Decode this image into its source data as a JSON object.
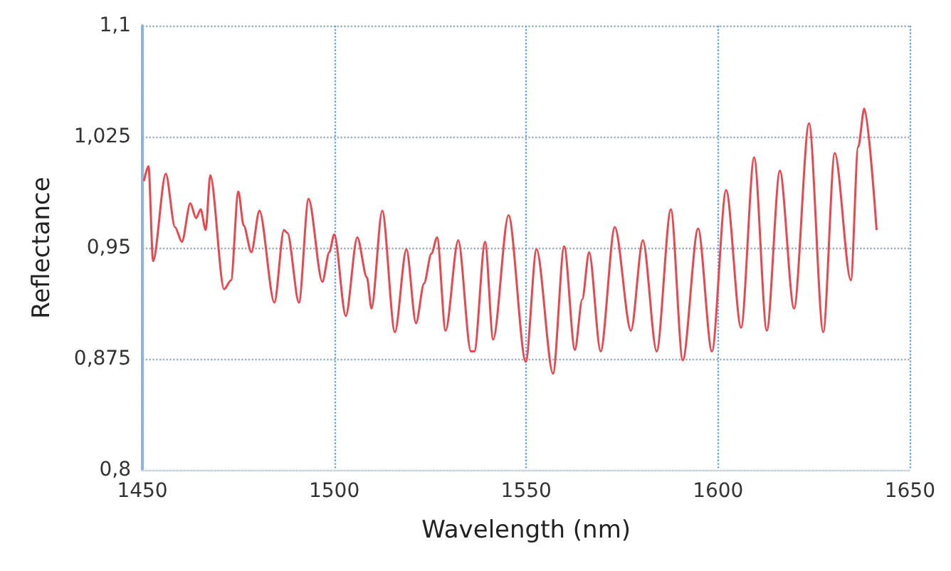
{
  "chart_data": {
    "type": "line",
    "xlabel": "Wavelength (nm)",
    "ylabel": "Reflectance",
    "xlim": [
      1450,
      1650
    ],
    "xticks": [
      1450,
      1500,
      1550,
      1600,
      1650
    ],
    "ylim": [
      0.8,
      1.1
    ],
    "yticks": [
      {
        "value": 0.8,
        "label": "0,8"
      },
      {
        "value": 0.875,
        "label": "0,875"
      },
      {
        "value": 0.95,
        "label": "0,95"
      },
      {
        "value": 1.025,
        "label": "1,025"
      },
      {
        "value": 1.1,
        "label": "1,1"
      }
    ],
    "grid": true,
    "marker": "none",
    "line_style": "solid",
    "series": [
      {
        "color": "#e8474f",
        "x": [
          1450.4,
          1451.6,
          1452.8,
          1456.1,
          1458.5,
          1460.3,
          1462.5,
          1464,
          1465.2,
          1466.5,
          1467.7,
          1471.3,
          1473.1,
          1475,
          1476.4,
          1478.4,
          1480.5,
          1484.4,
          1486.9,
          1487.8,
          1490.8,
          1493.3,
          1496.9,
          1498.7,
          1500,
          1503,
          1506,
          1508.5,
          1509.7,
          1512.5,
          1515.8,
          1518.8,
          1521.3,
          1523.4,
          1525.3,
          1526.8,
          1529,
          1532.3,
          1535.6,
          1536.5,
          1539.3,
          1541.4,
          1545.4,
          1549.9,
          1552.7,
          1557,
          1559.9,
          1562.7,
          1564.6,
          1566.4,
          1569.4,
          1573.1,
          1577.3,
          1580.4,
          1584,
          1587.7,
          1590.8,
          1594.8,
          1598.4,
          1602.1,
          1606,
          1609.4,
          1612.7,
          1616.1,
          1619.8,
          1623.7,
          1627.4,
          1630.4,
          1634.6,
          1636.5,
          1638.1,
          1641.3
        ],
        "values": [
          0.995,
          1.005,
          0.941,
          1.0,
          0.964,
          0.954,
          0.98,
          0.97,
          0.976,
          0.962,
          0.999,
          0.922,
          0.928,
          0.988,
          0.965,
          0.947,
          0.975,
          0.913,
          0.962,
          0.96,
          0.913,
          0.983,
          0.927,
          0.947,
          0.959,
          0.904,
          0.957,
          0.93,
          0.909,
          0.975,
          0.893,
          0.949,
          0.899,
          0.926,
          0.946,
          0.957,
          0.894,
          0.955,
          0.88,
          0.88,
          0.954,
          0.888,
          0.972,
          0.873,
          0.949,
          0.865,
          0.951,
          0.881,
          0.915,
          0.947,
          0.88,
          0.964,
          0.894,
          0.955,
          0.88,
          0.976,
          0.874,
          0.963,
          0.88,
          0.989,
          0.896,
          1.011,
          0.894,
          1.002,
          0.909,
          1.034,
          0.893,
          1.014,
          0.928,
          1.018,
          1.044,
          0.962
        ]
      }
    ]
  }
}
